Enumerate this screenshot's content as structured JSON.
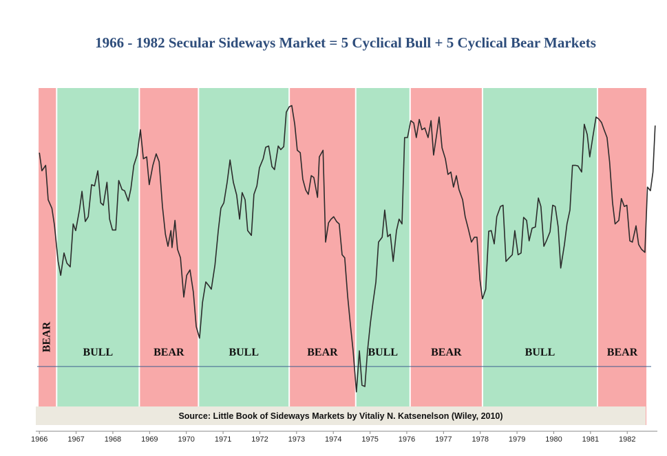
{
  "chart_data": {
    "type": "line",
    "title": "1966 - 1982 Secular Sideways Market = 5 Cyclical Bull + 5 Cyclical Bear Markets",
    "source": "Source: Little Book of Sideways Markets by Vitaliy N. Katsenelson (Wiley, 2010)",
    "xlim": [
      1965.94,
      1982.82
    ],
    "ylim": [
      554,
      1080
    ],
    "xticks": [
      1966,
      1967,
      1968,
      1969,
      1970,
      1971,
      1972,
      1973,
      1974,
      1975,
      1976,
      1977,
      1978,
      1979,
      1980,
      1981,
      1982
    ],
    "color": "#2b2b2b",
    "reference_line": {
      "value": 619,
      "color": "#3e5f8f"
    },
    "regimes": [
      {
        "label": "BEAR",
        "start": 1965.96,
        "end": 1966.47,
        "color": "#f8a9a9"
      },
      {
        "label": "BULL",
        "start": 1966.47,
        "end": 1968.72,
        "color": "#aee4c5"
      },
      {
        "label": "BEAR",
        "start": 1968.72,
        "end": 1970.33,
        "color": "#f8a9a9"
      },
      {
        "label": "BULL",
        "start": 1970.33,
        "end": 1972.8,
        "color": "#aee4c5"
      },
      {
        "label": "BEAR",
        "start": 1972.8,
        "end": 1974.61,
        "color": "#f8a9a9"
      },
      {
        "label": "BULL",
        "start": 1974.61,
        "end": 1976.09,
        "color": "#aee4c5"
      },
      {
        "label": "BEAR",
        "start": 1976.09,
        "end": 1978.06,
        "color": "#f8a9a9"
      },
      {
        "label": "BULL",
        "start": 1978.06,
        "end": 1981.19,
        "color": "#aee4c5"
      },
      {
        "label": "BEAR",
        "start": 1981.19,
        "end": 1982.54,
        "color": "#f8a9a9"
      }
    ],
    "x": [
      1966.0,
      1966.07,
      1966.17,
      1966.24,
      1966.34,
      1966.41,
      1966.51,
      1966.58,
      1966.67,
      1966.75,
      1966.84,
      1966.92,
      1966.99,
      1967.09,
      1967.16,
      1967.25,
      1967.33,
      1967.42,
      1967.5,
      1967.59,
      1967.67,
      1967.74,
      1967.84,
      1967.91,
      1967.99,
      1968.08,
      1968.16,
      1968.25,
      1968.32,
      1968.42,
      1968.49,
      1968.57,
      1968.66,
      1968.75,
      1968.83,
      1968.92,
      1968.99,
      1969.09,
      1969.18,
      1969.26,
      1969.35,
      1969.43,
      1969.5,
      1969.58,
      1969.61,
      1969.69,
      1969.76,
      1969.84,
      1969.93,
      1970.01,
      1970.1,
      1970.19,
      1970.27,
      1970.36,
      1970.44,
      1970.53,
      1970.61,
      1970.68,
      1970.78,
      1970.87,
      1970.94,
      1971.02,
      1971.11,
      1971.19,
      1971.28,
      1971.37,
      1971.45,
      1971.52,
      1971.6,
      1971.67,
      1971.77,
      1971.84,
      1971.92,
      1971.99,
      1972.09,
      1972.16,
      1972.24,
      1972.33,
      1972.4,
      1972.5,
      1972.57,
      1972.65,
      1972.72,
      1972.8,
      1972.87,
      1972.95,
      1973.02,
      1973.1,
      1973.17,
      1973.25,
      1973.32,
      1973.4,
      1973.47,
      1973.57,
      1973.62,
      1973.72,
      1973.79,
      1973.87,
      1973.94,
      1974.01,
      1974.09,
      1974.16,
      1974.24,
      1974.31,
      1974.39,
      1974.46,
      1974.54,
      1974.63,
      1974.71,
      1974.78,
      1974.86,
      1974.93,
      1975.01,
      1975.08,
      1975.16,
      1975.23,
      1975.33,
      1975.4,
      1975.48,
      1975.55,
      1975.63,
      1975.72,
      1975.79,
      1975.87,
      1975.94,
      1976.02,
      1976.11,
      1976.19,
      1976.26,
      1976.34,
      1976.41,
      1976.49,
      1976.58,
      1976.66,
      1976.73,
      1976.81,
      1976.88,
      1976.96,
      1977.05,
      1977.12,
      1977.2,
      1977.27,
      1977.35,
      1977.42,
      1977.52,
      1977.59,
      1977.67,
      1977.76,
      1977.84,
      1977.91,
      1977.99,
      1978.06,
      1978.15,
      1978.23,
      1978.3,
      1978.38,
      1978.45,
      1978.55,
      1978.62,
      1978.7,
      1978.79,
      1978.87,
      1978.94,
      1979.03,
      1979.11,
      1979.18,
      1979.26,
      1979.33,
      1979.41,
      1979.5,
      1979.58,
      1979.65,
      1979.73,
      1979.8,
      1979.9,
      1979.97,
      1980.04,
      1980.12,
      1980.19,
      1980.29,
      1980.36,
      1980.44,
      1980.51,
      1980.59,
      1980.66,
      1980.76,
      1980.83,
      1980.91,
      1980.98,
      1981.06,
      1981.15,
      1981.22,
      1981.3,
      1981.37,
      1981.45,
      1981.52,
      1981.6,
      1981.67,
      1981.77,
      1981.84,
      1981.92,
      1981.99,
      1982.07,
      1982.14,
      1982.24,
      1982.31,
      1982.39,
      1982.48,
      1982.55,
      1982.63,
      1982.7,
      1982.76
    ],
    "values": [
      973,
      943,
      952,
      895,
      881,
      853,
      793,
      770,
      807,
      790,
      784,
      855,
      844,
      878,
      909,
      859,
      867,
      920,
      918,
      943,
      890,
      886,
      924,
      863,
      845,
      845,
      927,
      912,
      910,
      893,
      913,
      952,
      969,
      1011,
      963,
      966,
      920,
      952,
      971,
      958,
      884,
      838,
      818,
      844,
      816,
      861,
      813,
      799,
      734,
      770,
      779,
      742,
      685,
      666,
      725,
      759,
      753,
      747,
      787,
      844,
      881,
      890,
      924,
      961,
      924,
      903,
      863,
      907,
      895,
      844,
      836,
      904,
      918,
      948,
      963,
      982,
      984,
      950,
      945,
      984,
      978,
      983,
      1040,
      1049,
      1051,
      1020,
      977,
      973,
      929,
      911,
      904,
      935,
      932,
      899,
      966,
      977,
      825,
      857,
      863,
      867,
      859,
      855,
      804,
      799,
      736,
      691,
      645,
      577,
      645,
      588,
      586,
      645,
      691,
      725,
      759,
      825,
      833,
      878,
      834,
      838,
      793,
      844,
      863,
      855,
      998,
      998,
      1026,
      1022,
      998,
      1028,
      1011,
      1014,
      998,
      1026,
      969,
      1002,
      1032,
      981,
      963,
      937,
      941,
      916,
      935,
      912,
      895,
      867,
      848,
      825,
      833,
      833,
      763,
      731,
      747,
      843,
      844,
      822,
      867,
      884,
      886,
      793,
      799,
      804,
      844,
      804,
      807,
      866,
      861,
      827,
      848,
      850,
      898,
      884,
      818,
      827,
      842,
      886,
      884,
      850,
      782,
      821,
      855,
      878,
      952,
      952,
      951,
      941,
      1020,
      1003,
      966,
      998,
      1032,
      1029,
      1023,
      1011,
      998,
      958,
      890,
      855,
      861,
      897,
      884,
      886,
      827,
      825,
      852,
      821,
      813,
      808,
      916,
      910,
      941,
      1018
    ]
  }
}
